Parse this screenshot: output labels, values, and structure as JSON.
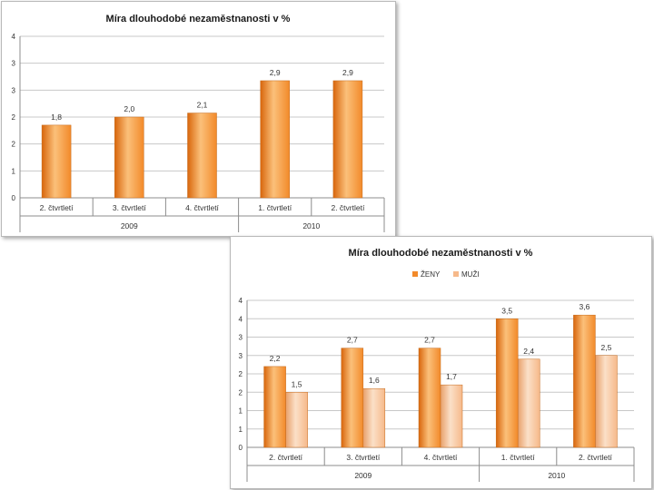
{
  "chart_data": [
    {
      "type": "bar",
      "title": "Míra dlouhodobé nezaměstnanosti v %",
      "categories": [
        "2. čtvrtletí",
        "3. čtvrtletí",
        "4. čtvrtletí",
        "1. čtvrtletí",
        "2. čtvrtletí"
      ],
      "groups": [
        {
          "label": "2009",
          "span": [
            0,
            2
          ]
        },
        {
          "label": "2010",
          "span": [
            3,
            4
          ]
        }
      ],
      "series": [
        {
          "name": "",
          "color": "#F28A2A",
          "values": [
            1.8,
            2.0,
            2.1,
            2.9,
            2.9
          ]
        }
      ],
      "value_labels": [
        "1,8",
        "2,0",
        "2,1",
        "2,9",
        "2,9"
      ],
      "y_ticks": [
        "0",
        "1",
        "2",
        "2",
        "3",
        "3",
        "4"
      ],
      "ylim": [
        0,
        4
      ],
      "legend": "none",
      "grid": true
    },
    {
      "type": "bar",
      "title": "Míra dlouhodobé nezaměstnanosti v %",
      "categories": [
        "2. čtvrtletí",
        "3. čtvrtletí",
        "4. čtvrtletí",
        "1. čtvrtletí",
        "2. čtvrtletí"
      ],
      "groups": [
        {
          "label": "2009",
          "span": [
            0,
            2
          ]
        },
        {
          "label": "2010",
          "span": [
            3,
            4
          ]
        }
      ],
      "series": [
        {
          "name": "ŽENY",
          "color": "#F28A2A",
          "values": [
            2.2,
            2.7,
            2.7,
            3.5,
            3.6
          ]
        },
        {
          "name": "MUŽI",
          "color": "#F6B98A",
          "values": [
            1.5,
            1.6,
            1.7,
            2.4,
            2.5
          ]
        }
      ],
      "value_labels": [
        [
          "2,2",
          "2,7",
          "2,7",
          "3,5",
          "3,6"
        ],
        [
          "1,5",
          "1,6",
          "1,7",
          "2,4",
          "2,5"
        ]
      ],
      "y_ticks": [
        "0",
        "1",
        "1",
        "2",
        "2",
        "3",
        "3",
        "4",
        "4"
      ],
      "ylim": [
        0,
        4
      ],
      "legend": "top-center",
      "grid": true
    }
  ]
}
